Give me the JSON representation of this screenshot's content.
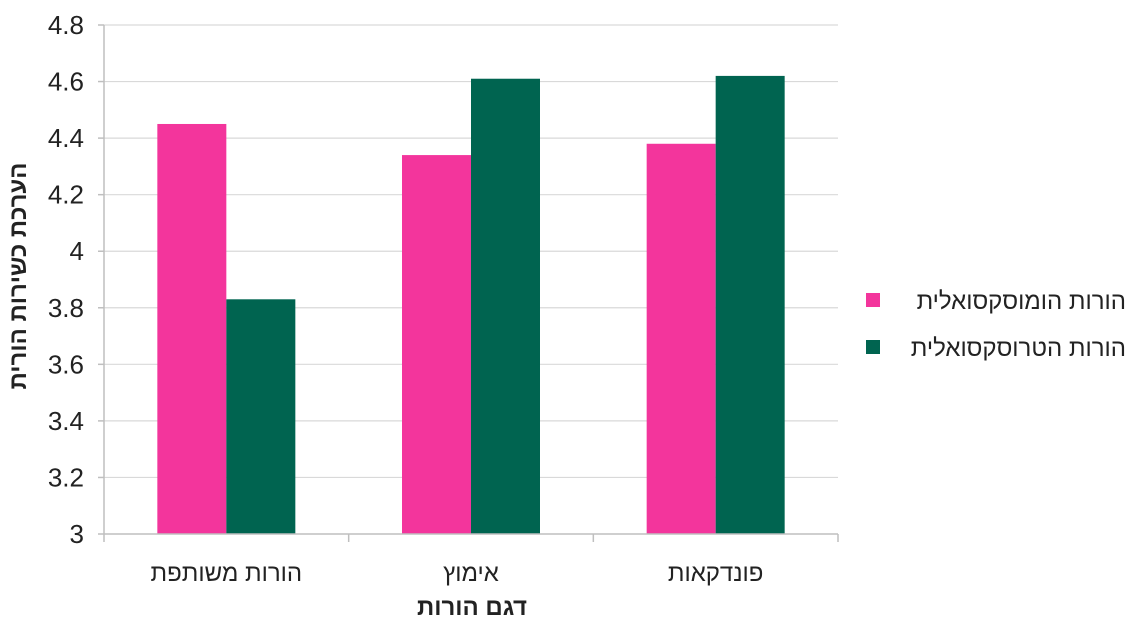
{
  "chart_data": {
    "type": "bar",
    "title": "",
    "xlabel": "דגם הורות",
    "ylabel": "הערכת כשירות הורית",
    "categories": [
      "הורות משותפת",
      "אימוץ",
      "פונדקאות"
    ],
    "series": [
      {
        "name": "הורות הומוסקסואלית",
        "color": "#f3359c",
        "values": [
          4.45,
          4.34,
          4.38
        ]
      },
      {
        "name": "הורות הטרוסקסואלית",
        "color": "#006450",
        "values": [
          3.83,
          4.61,
          4.62
        ]
      }
    ],
    "ylim": [
      3,
      4.8
    ],
    "yticks": [
      "3",
      "3.2",
      "3.4",
      "3.6",
      "3.8",
      "4",
      "4.2",
      "4.4",
      "4.6",
      "4.8"
    ],
    "grid": true,
    "legend_position": "right"
  }
}
